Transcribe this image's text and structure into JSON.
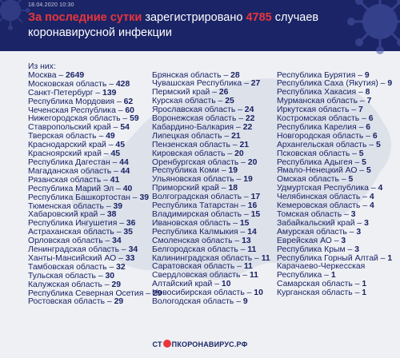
{
  "header": {
    "date": "18.04.2020 10:30",
    "title_part1": "За последние сутки",
    "title_part2": " зарегистрировано ",
    "title_count": "4785",
    "title_part3": " случаев",
    "title_line2": "коронавирусной инфекции"
  },
  "list": {
    "intro": "Из них:",
    "col1": [
      [
        "Москва – ",
        "2649"
      ],
      [
        "Московская область – ",
        "428"
      ],
      [
        "Санкт-Петербург – ",
        "139"
      ],
      [
        "Республика Мордовия – ",
        "62"
      ],
      [
        "Чеченская Республика – ",
        "60"
      ],
      [
        "Нижегородская область – ",
        "59"
      ],
      [
        "Ставропольский край – ",
        "54"
      ],
      [
        "Тверская область – ",
        "49"
      ],
      [
        "Краснодарский край – ",
        "45"
      ],
      [
        "Красноярский край – ",
        "45"
      ],
      [
        "Республика Дагестан – ",
        "44"
      ],
      [
        "Магаданская область – ",
        "44"
      ],
      [
        "Рязанская область – ",
        "41"
      ],
      [
        "Республика Марий Эл – ",
        "40"
      ],
      [
        "Республика Башкортостан – ",
        "39"
      ],
      [
        "Тюменская область – ",
        "39"
      ],
      [
        "Хабаровский край – ",
        "38"
      ],
      [
        "Республика Ингушетия – ",
        "36"
      ],
      [
        "Астраханская область – ",
        "35"
      ],
      [
        "Орловская область – ",
        "34"
      ],
      [
        "Ленинградская область – ",
        "34"
      ],
      [
        "Ханты-Мансийский АО – ",
        "33"
      ],
      [
        "Тамбовская область – ",
        "32"
      ],
      [
        "Тульская область – ",
        "30"
      ],
      [
        "Калужская область – ",
        "29"
      ],
      [
        "Республика Северная Осетия – ",
        "29"
      ],
      [
        "Ростовская область – ",
        "29"
      ]
    ],
    "col2": [
      [
        "Брянская область – ",
        "28"
      ],
      [
        "Чувашская Республика – ",
        "27"
      ],
      [
        "Пермский край – ",
        "26"
      ],
      [
        "Курская область – ",
        "25"
      ],
      [
        "Ярославская область – ",
        "24"
      ],
      [
        "Воронежская область – ",
        "22"
      ],
      [
        "Кабардино-Балкария – ",
        "22"
      ],
      [
        "Липецкая область – ",
        "21"
      ],
      [
        "Пензенская область – ",
        "21"
      ],
      [
        "Кировская область – ",
        "20"
      ],
      [
        "Оренбургская область – ",
        "20"
      ],
      [
        "Республика Коми – ",
        "19"
      ],
      [
        "Ульяновская область – ",
        "19"
      ],
      [
        "Приморский край – ",
        "18"
      ],
      [
        "Волгоградская область – ",
        "17"
      ],
      [
        "Республика Татарстан – ",
        "16"
      ],
      [
        "Владимирская область – ",
        "15"
      ],
      [
        "Ивановская область – ",
        "15"
      ],
      [
        "Республика Калмыкия – ",
        "14"
      ],
      [
        "Смоленская область – ",
        "13"
      ],
      [
        "Белгородская область – ",
        "11"
      ],
      [
        "Калининградская область – ",
        "11"
      ],
      [
        "Саратовская область – ",
        "11"
      ],
      [
        "Свердловская область – ",
        "11"
      ],
      [
        "Алтайский край – ",
        "10"
      ],
      [
        "Новосибирская область – ",
        "10"
      ],
      [
        "Вологодская область – ",
        "9"
      ]
    ],
    "col3": [
      [
        "Республика Бурятия – ",
        "9"
      ],
      [
        "Республика Саха (Якутия) – ",
        "9"
      ],
      [
        "Республика Хакасия – ",
        "8"
      ],
      [
        "Мурманская область – ",
        "7"
      ],
      [
        "Иркутская область – ",
        "7"
      ],
      [
        "Костромская область – ",
        "6"
      ],
      [
        "Республика Карелия – ",
        "6"
      ],
      [
        "Новгородская область – ",
        "6"
      ],
      [
        "Архангельская область – ",
        "5"
      ],
      [
        "Псковская область – ",
        "5"
      ],
      [
        "Республика Адыгея – ",
        "5"
      ],
      [
        "Ямало-Ненецкий АО – ",
        "5"
      ],
      [
        "Омская область – ",
        "5"
      ],
      [
        "Удмуртская Республика – ",
        "4"
      ],
      [
        "Челябинская область – ",
        "4"
      ],
      [
        "Кемеровская область – ",
        "4"
      ],
      [
        "Томская область – ",
        "3"
      ],
      [
        "Забайкальский край – ",
        "3"
      ],
      [
        "Амурская область – ",
        "3"
      ],
      [
        "Еврейская АО – ",
        "3"
      ],
      [
        "Республика Крым – ",
        "3"
      ],
      [
        "Республика Горный Алтай – ",
        "1"
      ],
      [
        "Карачаево-Черкесская",
        ""
      ],
      [
        "Республика – ",
        "1"
      ],
      [
        "Самарская область – ",
        "1"
      ],
      [
        "Курганская область – ",
        "1"
      ]
    ]
  },
  "footer": {
    "logo_pre": "СТ",
    "logo_post": "ПКОРОНАВИРУС.РФ"
  },
  "colors": {
    "header_bg": "#1b2466",
    "accent": "#e8363c",
    "text": "#1b2466",
    "background": "#eef0f4"
  }
}
